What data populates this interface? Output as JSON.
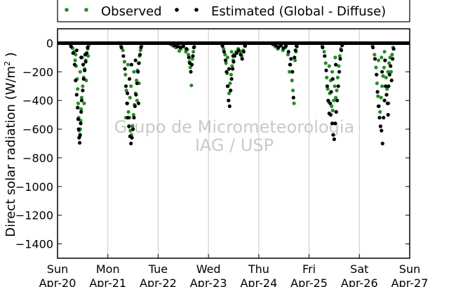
{
  "chart_data": {
    "type": "scatter",
    "ylabel": "Direct solar radiation (W/m² )",
    "ylabel_main": "Direct solar radiation (W/m",
    "ylabel_sup": "2",
    "ylabel_end": " )",
    "ylim": [
      -1500,
      100
    ],
    "yticks": [
      0,
      -200,
      -400,
      -600,
      -800,
      -1000,
      -1200,
      -1400
    ],
    "xlim": [
      0,
      7
    ],
    "xticks": [
      {
        "x": 0,
        "weekday": "Sun",
        "date": "Apr-20"
      },
      {
        "x": 1,
        "weekday": "Mon",
        "date": "Apr-21"
      },
      {
        "x": 2,
        "weekday": "Tue",
        "date": "Apr-22"
      },
      {
        "x": 3,
        "weekday": "Wed",
        "date": "Apr-23"
      },
      {
        "x": 4,
        "weekday": "Thu",
        "date": "Apr-24"
      },
      {
        "x": 5,
        "weekday": "Fri",
        "date": "Apr-25"
      },
      {
        "x": 6,
        "weekday": "Sat",
        "date": "Apr-26"
      },
      {
        "x": 7,
        "weekday": "Sun",
        "date": "Apr-27"
      }
    ],
    "grid": "vertical",
    "legend_position": "top",
    "watermark": [
      "Grupo de Micrometeorologia",
      "IAG / USP"
    ],
    "series": [
      {
        "name": "Observed",
        "color": "#2a8a2a",
        "points": [
          [
            0.26,
            -15
          ],
          [
            0.3,
            -35
          ],
          [
            0.33,
            -60
          ],
          [
            0.35,
            -120
          ],
          [
            0.37,
            -160
          ],
          [
            0.39,
            -250
          ],
          [
            0.4,
            -320
          ],
          [
            0.41,
            -420
          ],
          [
            0.42,
            -520
          ],
          [
            0.43,
            -610
          ],
          [
            0.44,
            -650
          ],
          [
            0.45,
            -600
          ],
          [
            0.46,
            -540
          ],
          [
            0.47,
            -460
          ],
          [
            0.48,
            -380
          ],
          [
            0.5,
            -300
          ],
          [
            0.52,
            -240
          ],
          [
            0.54,
            -180
          ],
          [
            0.56,
            -120
          ],
          [
            0.58,
            -80
          ],
          [
            0.6,
            -40
          ],
          [
            0.62,
            -15
          ],
          [
            0.45,
            -200
          ],
          [
            0.49,
            -100
          ],
          [
            0.36,
            -80
          ],
          [
            0.53,
            -420
          ],
          [
            0.57,
            -260
          ],
          [
            0.61,
            -90
          ],
          [
            1.26,
            -20
          ],
          [
            1.3,
            -50
          ],
          [
            1.33,
            -130
          ],
          [
            1.35,
            -220
          ],
          [
            1.37,
            -330
          ],
          [
            1.39,
            -420
          ],
          [
            1.41,
            -480
          ],
          [
            1.43,
            -520
          ],
          [
            1.45,
            -610
          ],
          [
            1.47,
            -640
          ],
          [
            1.49,
            -580
          ],
          [
            1.51,
            -500
          ],
          [
            1.53,
            -430
          ],
          [
            1.55,
            -350
          ],
          [
            1.57,
            -260
          ],
          [
            1.59,
            -190
          ],
          [
            1.61,
            -140
          ],
          [
            1.63,
            -90
          ],
          [
            1.65,
            -50
          ],
          [
            1.67,
            -20
          ],
          [
            1.4,
            -150
          ],
          [
            1.46,
            -300
          ],
          [
            1.52,
            -200
          ],
          [
            1.58,
            -400
          ],
          [
            1.36,
            -520
          ],
          [
            1.44,
            -380
          ],
          [
            1.62,
            -280
          ],
          [
            2.25,
            -8
          ],
          [
            2.3,
            -20
          ],
          [
            2.35,
            -30
          ],
          [
            2.4,
            -15
          ],
          [
            2.45,
            -40
          ],
          [
            2.5,
            -25
          ],
          [
            2.55,
            -60
          ],
          [
            2.6,
            -80
          ],
          [
            2.62,
            -130
          ],
          [
            2.64,
            -170
          ],
          [
            2.66,
            -295
          ],
          [
            2.68,
            -110
          ],
          [
            2.7,
            -60
          ],
          [
            2.72,
            -25
          ],
          [
            2.42,
            -55
          ],
          [
            2.58,
            -45
          ],
          [
            3.27,
            -10
          ],
          [
            3.3,
            -40
          ],
          [
            3.33,
            -80
          ],
          [
            3.35,
            -140
          ],
          [
            3.37,
            -210
          ],
          [
            3.39,
            -300
          ],
          [
            3.41,
            -350
          ],
          [
            3.43,
            -280
          ],
          [
            3.45,
            -220
          ],
          [
            3.47,
            -160
          ],
          [
            3.49,
            -120
          ],
          [
            3.51,
            -80
          ],
          [
            3.55,
            -60
          ],
          [
            3.59,
            -40
          ],
          [
            3.63,
            -60
          ],
          [
            3.66,
            -90
          ],
          [
            3.69,
            -50
          ],
          [
            3.72,
            -20
          ],
          [
            3.38,
            -100
          ],
          [
            3.46,
            -60
          ],
          [
            4.28,
            -10
          ],
          [
            4.33,
            -25
          ],
          [
            4.38,
            -40
          ],
          [
            4.43,
            -20
          ],
          [
            4.48,
            -50
          ],
          [
            4.53,
            -30
          ],
          [
            4.58,
            -80
          ],
          [
            4.61,
            -200
          ],
          [
            4.63,
            -150
          ],
          [
            4.66,
            -260
          ],
          [
            4.68,
            -330
          ],
          [
            4.7,
            -420
          ],
          [
            4.72,
            -120
          ],
          [
            4.74,
            -60
          ],
          [
            4.76,
            -25
          ],
          [
            5.26,
            -20
          ],
          [
            5.3,
            -60
          ],
          [
            5.33,
            -140
          ],
          [
            5.35,
            -240
          ],
          [
            5.37,
            -320
          ],
          [
            5.39,
            -410
          ],
          [
            5.41,
            -350
          ],
          [
            5.43,
            -260
          ],
          [
            5.45,
            -440
          ],
          [
            5.47,
            -470
          ],
          [
            5.49,
            -400
          ],
          [
            5.51,
            -300
          ],
          [
            5.53,
            -380
          ],
          [
            5.55,
            -330
          ],
          [
            5.57,
            -240
          ],
          [
            5.59,
            -160
          ],
          [
            5.61,
            -90
          ],
          [
            5.63,
            -40
          ],
          [
            5.65,
            -15
          ],
          [
            5.46,
            -200
          ],
          [
            5.52,
            -100
          ],
          [
            5.4,
            -160
          ],
          [
            6.26,
            -20
          ],
          [
            6.3,
            -80
          ],
          [
            6.33,
            -170
          ],
          [
            6.35,
            -280
          ],
          [
            6.37,
            -370
          ],
          [
            6.39,
            -440
          ],
          [
            6.41,
            -480
          ],
          [
            6.43,
            -380
          ],
          [
            6.45,
            -300
          ],
          [
            6.47,
            -230
          ],
          [
            6.49,
            -170
          ],
          [
            6.51,
            -120
          ],
          [
            6.53,
            -240
          ],
          [
            6.55,
            -320
          ],
          [
            6.57,
            -200
          ],
          [
            6.59,
            -140
          ],
          [
            6.61,
            -100
          ],
          [
            6.63,
            -200
          ],
          [
            6.65,
            -80
          ],
          [
            6.67,
            -30
          ],
          [
            6.44,
            -100
          ],
          [
            6.5,
            -60
          ],
          [
            6.58,
            -420
          ],
          [
            6.38,
            -120
          ]
        ]
      },
      {
        "name": "Estimated (Global - Diffuse)",
        "color": "#000000",
        "points": [
          [
            0.27,
            -25
          ],
          [
            0.31,
            -70
          ],
          [
            0.34,
            -150
          ],
          [
            0.36,
            -260
          ],
          [
            0.38,
            -360
          ],
          [
            0.4,
            -450
          ],
          [
            0.41,
            -530
          ],
          [
            0.42,
            -600
          ],
          [
            0.43,
            -660
          ],
          [
            0.44,
            -695
          ],
          [
            0.45,
            -640
          ],
          [
            0.46,
            -560
          ],
          [
            0.47,
            -480
          ],
          [
            0.48,
            -400
          ],
          [
            0.5,
            -330
          ],
          [
            0.52,
            -250
          ],
          [
            0.54,
            -190
          ],
          [
            0.56,
            -130
          ],
          [
            0.58,
            -70
          ],
          [
            0.6,
            -30
          ],
          [
            0.38,
            -50
          ],
          [
            0.47,
            -100
          ],
          [
            0.51,
            -150
          ],
          [
            0.55,
            -80
          ],
          [
            1.27,
            -30
          ],
          [
            1.31,
            -90
          ],
          [
            1.34,
            -180
          ],
          [
            1.36,
            -300
          ],
          [
            1.38,
            -420
          ],
          [
            1.4,
            -520
          ],
          [
            1.42,
            -580
          ],
          [
            1.44,
            -650
          ],
          [
            1.46,
            -700
          ],
          [
            1.48,
            -660
          ],
          [
            1.5,
            -600
          ],
          [
            1.52,
            -520
          ],
          [
            1.54,
            -440
          ],
          [
            1.56,
            -360
          ],
          [
            1.58,
            -280
          ],
          [
            1.6,
            -200
          ],
          [
            1.62,
            -140
          ],
          [
            1.64,
            -80
          ],
          [
            1.66,
            -30
          ],
          [
            1.43,
            -250
          ],
          [
            1.47,
            -150
          ],
          [
            1.55,
            -120
          ],
          [
            1.39,
            -350
          ],
          [
            1.61,
            -420
          ],
          [
            2.26,
            -5
          ],
          [
            2.32,
            -15
          ],
          [
            2.38,
            -25
          ],
          [
            2.44,
            -30
          ],
          [
            2.5,
            -20
          ],
          [
            2.56,
            -40
          ],
          [
            2.61,
            -100
          ],
          [
            2.63,
            -140
          ],
          [
            2.65,
            -200
          ],
          [
            2.67,
            -150
          ],
          [
            2.69,
            -90
          ],
          [
            2.71,
            -30
          ],
          [
            3.28,
            -20
          ],
          [
            3.31,
            -60
          ],
          [
            3.34,
            -120
          ],
          [
            3.36,
            -200
          ],
          [
            3.38,
            -300
          ],
          [
            3.4,
            -400
          ],
          [
            3.42,
            -440
          ],
          [
            3.44,
            -330
          ],
          [
            3.46,
            -250
          ],
          [
            3.48,
            -180
          ],
          [
            3.5,
            -130
          ],
          [
            3.52,
            -90
          ],
          [
            3.56,
            -70
          ],
          [
            3.6,
            -50
          ],
          [
            3.64,
            -80
          ],
          [
            3.67,
            -110
          ],
          [
            3.7,
            -60
          ],
          [
            3.73,
            -20
          ],
          [
            3.41,
            -180
          ],
          [
            3.49,
            -90
          ],
          [
            4.29,
            -5
          ],
          [
            4.34,
            -15
          ],
          [
            4.39,
            -30
          ],
          [
            4.44,
            -15
          ],
          [
            4.49,
            -35
          ],
          [
            4.54,
            -20
          ],
          [
            4.59,
            -60
          ],
          [
            4.62,
            -150
          ],
          [
            4.64,
            -110
          ],
          [
            4.67,
            -200
          ],
          [
            4.69,
            -380
          ],
          [
            4.71,
            -100
          ],
          [
            4.73,
            -50
          ],
          [
            4.75,
            -20
          ],
          [
            5.27,
            -30
          ],
          [
            5.31,
            -90
          ],
          [
            5.34,
            -190
          ],
          [
            5.36,
            -300
          ],
          [
            5.38,
            -400
          ],
          [
            5.4,
            -490
          ],
          [
            5.42,
            -420
          ],
          [
            5.44,
            -340
          ],
          [
            5.46,
            -560
          ],
          [
            5.48,
            -640
          ],
          [
            5.5,
            -670
          ],
          [
            5.52,
            -560
          ],
          [
            5.54,
            -480
          ],
          [
            5.56,
            -400
          ],
          [
            5.58,
            -300
          ],
          [
            5.6,
            -200
          ],
          [
            5.62,
            -110
          ],
          [
            5.64,
            -50
          ],
          [
            5.66,
            -15
          ],
          [
            5.47,
            -250
          ],
          [
            5.53,
            -150
          ],
          [
            5.43,
            -500
          ],
          [
            6.27,
            -30
          ],
          [
            6.31,
            -110
          ],
          [
            6.34,
            -220
          ],
          [
            6.36,
            -340
          ],
          [
            6.38,
            -440
          ],
          [
            6.4,
            -520
          ],
          [
            6.42,
            -580
          ],
          [
            6.44,
            -610
          ],
          [
            6.46,
            -700
          ],
          [
            6.48,
            -520
          ],
          [
            6.5,
            -400
          ],
          [
            6.52,
            -300
          ],
          [
            6.54,
            -360
          ],
          [
            6.56,
            -420
          ],
          [
            6.58,
            -300
          ],
          [
            6.6,
            -220
          ],
          [
            6.62,
            -160
          ],
          [
            6.64,
            -260
          ],
          [
            6.66,
            -110
          ],
          [
            6.68,
            -40
          ],
          [
            6.45,
            -200
          ],
          [
            6.51,
            -120
          ],
          [
            6.57,
            -500
          ]
        ]
      }
    ]
  }
}
